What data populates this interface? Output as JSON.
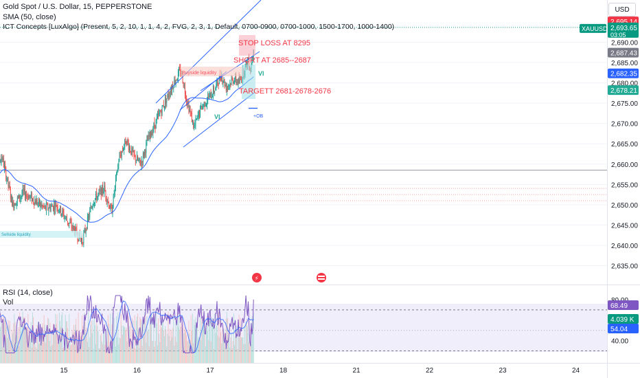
{
  "header": {
    "title": "Gold Spot / U.S. Dollar, 15, PEPPERSTONE",
    "sma_label": "SMA (50, close)",
    "ict_label": "ICT Concepts [LuxAlgo] (Present, 5, 2, 10, 1, 1, 4, 2, FVG, 2, 3, 1, Default, 0700-0900, 0700-1000, 1500-1700, 1000-1400)",
    "currency": "USD"
  },
  "annotations": {
    "stop_loss": "STOP LOSS AT 8295",
    "short_at": "SHORT AT 2685--2687",
    "target": "TARGETT 2681-2678-2676",
    "buyside_liquidity": "Buyside liquidity",
    "sellside_liquidity": "Sellside liquidity",
    "vi_label": "VI",
    "ob_label": "+OB"
  },
  "rsi": {
    "label": "RSI (14, close)",
    "vol_label": "Vol",
    "levels": [
      "80.00",
      "40.00"
    ],
    "value": "68.49",
    "ma_value": "54.04",
    "volume": "4.039 K"
  },
  "colors": {
    "up": "#26a69a",
    "down": "#ef5350",
    "sma": "#2962ff",
    "rsi": "#7e57c2",
    "channel": "#2962ff",
    "annotation": "#f23645"
  },
  "chart_data": {
    "type": "candlestick",
    "title": "Gold Spot / U.S. Dollar, 15, PEPPERSTONE",
    "symbol": "XAUUSD",
    "y_ticks": [
      2635,
      2640,
      2645,
      2650,
      2655,
      2660,
      2665,
      2670,
      2675,
      2680,
      2685,
      2690
    ],
    "y_tick_labels": [
      "2,635.00",
      "2,640.00",
      "2,645.00",
      "2,650.00",
      "2,655.00",
      "2,660.00",
      "2,665.00",
      "2,670.00",
      "2,675.00",
      "2,680.00",
      "2,685.00",
      "2,690.00"
    ],
    "ylim": [
      2630.5,
      2697.5
    ],
    "x_ticks": [
      "15",
      "16",
      "17",
      "18",
      "21",
      "22",
      "23",
      "24"
    ],
    "key_points": [
      [
        14.0,
        2655
      ],
      [
        14.15,
        2662
      ],
      [
        14.3,
        2650
      ],
      [
        14.45,
        2653
      ],
      [
        14.6,
        2651
      ],
      [
        14.75,
        2649
      ],
      [
        14.9,
        2650
      ],
      [
        15.05,
        2646
      ],
      [
        15.25,
        2641
      ],
      [
        15.4,
        2651
      ],
      [
        15.55,
        2654
      ],
      [
        15.65,
        2648
      ],
      [
        15.75,
        2661
      ],
      [
        15.85,
        2666
      ],
      [
        15.95,
        2662
      ],
      [
        16.05,
        2660
      ],
      [
        16.15,
        2666
      ],
      [
        16.25,
        2670
      ],
      [
        16.4,
        2676
      ],
      [
        16.5,
        2680
      ],
      [
        16.6,
        2683
      ],
      [
        16.68,
        2676
      ],
      [
        16.78,
        2669
      ],
      [
        16.88,
        2674
      ],
      [
        17.05,
        2678
      ],
      [
        17.15,
        2682
      ],
      [
        17.22,
        2679
      ],
      [
        17.32,
        2681
      ],
      [
        17.4,
        2680
      ],
      [
        17.48,
        2684
      ],
      [
        17.52,
        2686
      ],
      [
        17.55,
        2683
      ],
      [
        17.6,
        2690
      ]
    ],
    "price_labels": [
      {
        "value": 2695.14,
        "label": "2,695.14",
        "color": "#f23645"
      },
      {
        "value": 2693.65,
        "label": "2,693.65",
        "sub": "03:05",
        "symbol": "XAUUSD",
        "color": "#089981"
      },
      {
        "value": 2687.43,
        "label": "2,687.43",
        "color": "#787b86"
      },
      {
        "value": 2682.35,
        "label": "2,682.35",
        "color": "#2962ff"
      },
      {
        "value": 2678.21,
        "label": "2,678.21",
        "color": "#22ab94"
      }
    ],
    "horizontal_levels": [
      2658.5,
      2654.0,
      2652.5,
      2651.0
    ],
    "rsi_ylim": [
      25,
      88
    ]
  }
}
